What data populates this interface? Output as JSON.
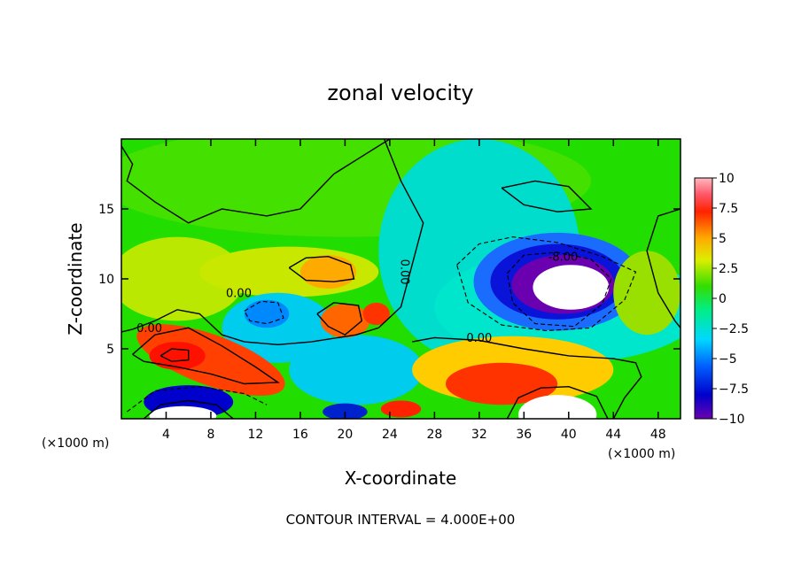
{
  "chart_data": {
    "type": "heatmap",
    "title": "zonal velocity",
    "xlabel": "X-coordinate",
    "ylabel": "Z-coordinate",
    "x_unit": "(×1000 m)",
    "z_unit": "(×1000 m)",
    "xlim": [
      0,
      50
    ],
    "ylim": [
      0,
      20
    ],
    "x_ticks": [
      "4",
      "8",
      "12",
      "16",
      "20",
      "24",
      "28",
      "32",
      "36",
      "40",
      "44",
      "48"
    ],
    "y_ticks": [
      "5",
      "10",
      "15"
    ],
    "colorbar": {
      "min": -10,
      "max": 10,
      "tick_labels": [
        "10",
        "7.5",
        "5",
        "2.5",
        "0",
        "−2.5",
        "−5",
        "−7.5",
        "−10"
      ]
    },
    "contour_labels": [
      {
        "text": "0.00",
        "x": 2.5,
        "y": 6.2
      },
      {
        "text": "0.00",
        "x": 10.5,
        "y": 8.7
      },
      {
        "text": "0.00",
        "x": 25.0,
        "y": 10.5
      },
      {
        "text": "0.00",
        "x": 32.0,
        "y": 5.5
      },
      {
        "text": "-8.00",
        "x": 39.5,
        "y": 11.3
      }
    ],
    "footer": "CONTOUR INTERVAL = 4.000E+00"
  }
}
